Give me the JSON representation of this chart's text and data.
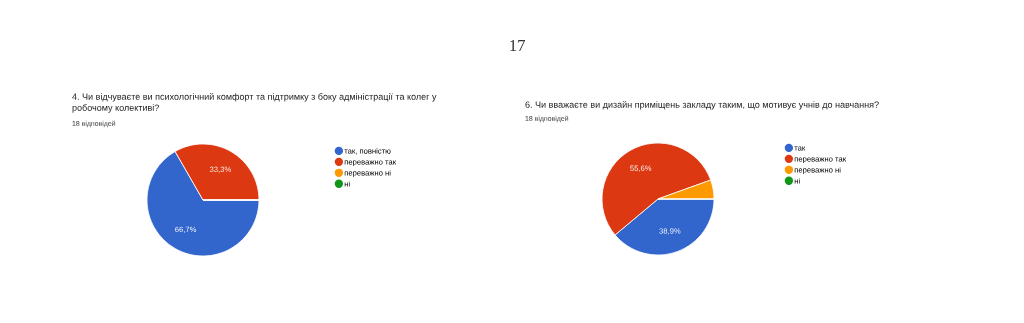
{
  "chart_data": [
    {
      "type": "pie",
      "title": "4. Чи відчуваєте ви психологічний комфорт та підтримку з боку адміністрації та колег у робочому колективі?",
      "subtitle": "18 відповідей",
      "annotations": [
        "17"
      ],
      "categories": [
        "так, повністю",
        "переважно так",
        "переважно ні",
        "ні"
      ],
      "values": [
        66.7,
        33.3,
        0,
        0
      ],
      "colors": [
        "#3366cc",
        "#dc3912",
        "#ff9900",
        "#109618"
      ],
      "value_labels": [
        "66,7%",
        "33,3%",
        null,
        null
      ],
      "legend": "right"
    },
    {
      "type": "pie",
      "title": "6. Чи вважаєте ви дизайн приміщень закладу таким, що мотивує учнів до навчання?",
      "subtitle": "18 відповідей",
      "categories": [
        "так",
        "переважно так",
        "переважно ні",
        "ні"
      ],
      "values": [
        38.9,
        55.6,
        5.5,
        0
      ],
      "colors": [
        "#3366cc",
        "#dc3912",
        "#ff9900",
        "#109618"
      ],
      "value_labels": [
        "38,9%",
        "55,6%",
        null,
        null
      ],
      "legend": "right"
    }
  ]
}
